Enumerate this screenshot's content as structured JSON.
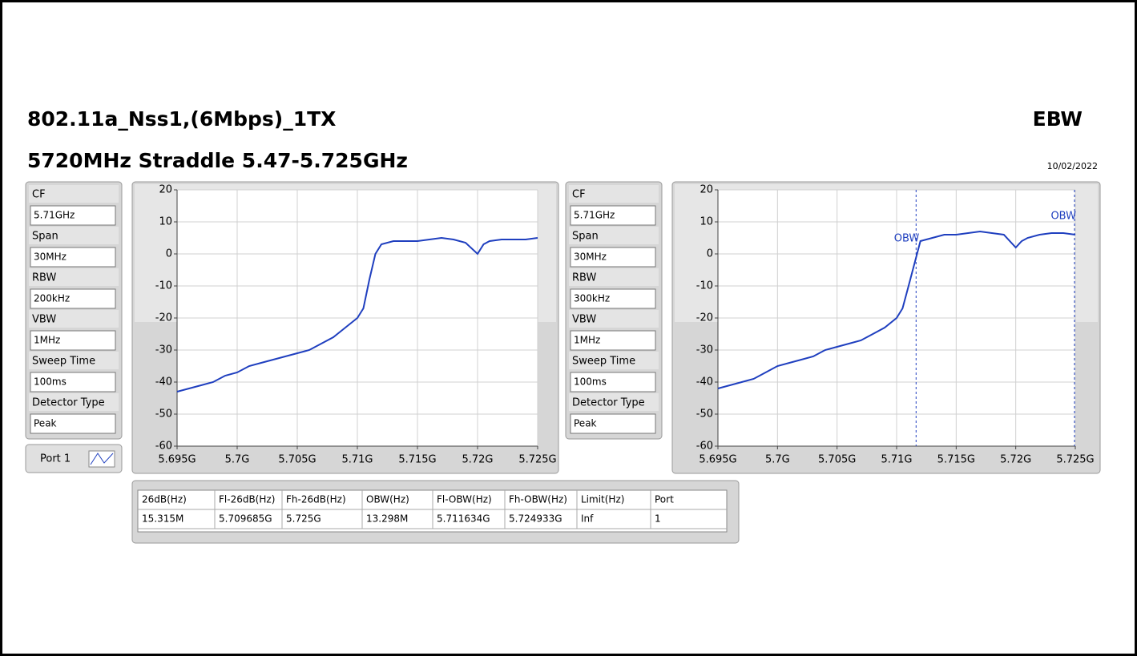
{
  "header": {
    "title": "802.11a_Nss1,(6Mbps)_1TX",
    "subtitle": "5720MHz Straddle 5.47-5.725GHz",
    "mode": "EBW",
    "date": "10/02/2022"
  },
  "settings": [
    [
      {
        "label": "CF",
        "value": "5.71GHz"
      },
      {
        "label": "Span",
        "value": "30MHz"
      },
      {
        "label": "RBW",
        "value": "200kHz"
      },
      {
        "label": "VBW",
        "value": "1MHz"
      },
      {
        "label": "Sweep Time",
        "value": "100ms"
      },
      {
        "label": "Detector Type",
        "value": "Peak"
      }
    ],
    [
      {
        "label": "CF",
        "value": "5.71GHz"
      },
      {
        "label": "Span",
        "value": "30MHz"
      },
      {
        "label": "RBW",
        "value": "300kHz"
      },
      {
        "label": "VBW",
        "value": "1MHz"
      },
      {
        "label": "Sweep Time",
        "value": "100ms"
      },
      {
        "label": "Detector Type",
        "value": "Peak"
      }
    ]
  ],
  "port_button": "Port 1",
  "chart_data": [
    {
      "type": "line",
      "x": [
        5695000000,
        5696000000,
        5697000000,
        5698000000,
        5699000000,
        5700000000,
        5701000000,
        5702000000,
        5703000000,
        5704000000,
        5705000000,
        5706000000,
        5707000000,
        5708000000,
        5709000000,
        5710000000,
        5710500000,
        5711000000,
        5711500000,
        5712000000,
        5713000000,
        5714000000,
        5715000000,
        5716000000,
        5717000000,
        5718000000,
        5719000000,
        5720000000,
        5720500000,
        5721000000,
        5722000000,
        5723000000,
        5724000000,
        5725000000
      ],
      "series": [
        {
          "color": "#1f3fbf",
          "values": [
            -43,
            -42,
            -41,
            -40,
            -38,
            -37,
            -35,
            -34,
            -33,
            -32,
            -31,
            -30,
            -28,
            -26,
            -23,
            -20,
            -17,
            -8,
            0,
            3,
            4,
            4,
            4,
            4.5,
            5,
            4.5,
            3.5,
            0,
            3,
            4,
            4.5,
            4.5,
            4.5,
            5
          ]
        }
      ],
      "xlim": [
        5695000000,
        5725000000
      ],
      "xticks": [
        {
          "value": 5695000000,
          "label": "5.695G"
        },
        {
          "value": 5700000000,
          "label": "5.7G"
        },
        {
          "value": 5705000000,
          "label": "5.705G"
        },
        {
          "value": 5710000000,
          "label": "5.71G"
        },
        {
          "value": 5715000000,
          "label": "5.715G"
        },
        {
          "value": 5720000000,
          "label": "5.72G"
        },
        {
          "value": 5725000000,
          "label": "5.725G"
        }
      ],
      "ylim": [
        -60,
        20
      ],
      "yticks": [
        -60,
        -50,
        -40,
        -30,
        -20,
        -10,
        0,
        10,
        20
      ],
      "grid": true
    },
    {
      "type": "line",
      "x": [
        5695000000,
        5696000000,
        5697000000,
        5698000000,
        5699000000,
        5700000000,
        5701000000,
        5702000000,
        5703000000,
        5704000000,
        5705000000,
        5706000000,
        5707000000,
        5708000000,
        5709000000,
        5710000000,
        5710500000,
        5711000000,
        5711500000,
        5712000000,
        5713000000,
        5714000000,
        5715000000,
        5716000000,
        5717000000,
        5718000000,
        5719000000,
        5720000000,
        5720500000,
        5721000000,
        5722000000,
        5723000000,
        5724000000,
        5725000000
      ],
      "series": [
        {
          "color": "#1f3fbf",
          "values": [
            -42,
            -41,
            -40,
            -39,
            -37,
            -35,
            -34,
            -33,
            -32,
            -30,
            -29,
            -28,
            -27,
            -25,
            -23,
            -20,
            -17,
            -10,
            -3,
            4,
            5,
            6,
            6,
            6.5,
            7,
            6.5,
            6,
            2,
            4,
            5,
            6,
            6.5,
            6.5,
            6
          ]
        }
      ],
      "xlim": [
        5695000000,
        5725000000
      ],
      "xticks": [
        {
          "value": 5695000000,
          "label": "5.695G"
        },
        {
          "value": 5700000000,
          "label": "5.7G"
        },
        {
          "value": 5705000000,
          "label": "5.705G"
        },
        {
          "value": 5710000000,
          "label": "5.71G"
        },
        {
          "value": 5715000000,
          "label": "5.715G"
        },
        {
          "value": 5720000000,
          "label": "5.72G"
        },
        {
          "value": 5725000000,
          "label": "5.725G"
        }
      ],
      "ylim": [
        -60,
        20
      ],
      "yticks": [
        -60,
        -50,
        -40,
        -30,
        -20,
        -10,
        0,
        10,
        20
      ],
      "grid": true,
      "markers": [
        {
          "label": "OBW",
          "x": 5711634000
        },
        {
          "label": "OBW",
          "x": 5724933000
        }
      ]
    }
  ],
  "table": {
    "headers": [
      "26dB(Hz)",
      "Fl-26dB(Hz)",
      "Fh-26dB(Hz)",
      "OBW(Hz)",
      "Fl-OBW(Hz)",
      "Fh-OBW(Hz)",
      "Limit(Hz)",
      "Port"
    ],
    "rows": [
      [
        "15.315M",
        "5.709685G",
        "5.725G",
        "13.298M",
        "5.711634G",
        "5.724933G",
        "Inf",
        "1"
      ]
    ]
  }
}
